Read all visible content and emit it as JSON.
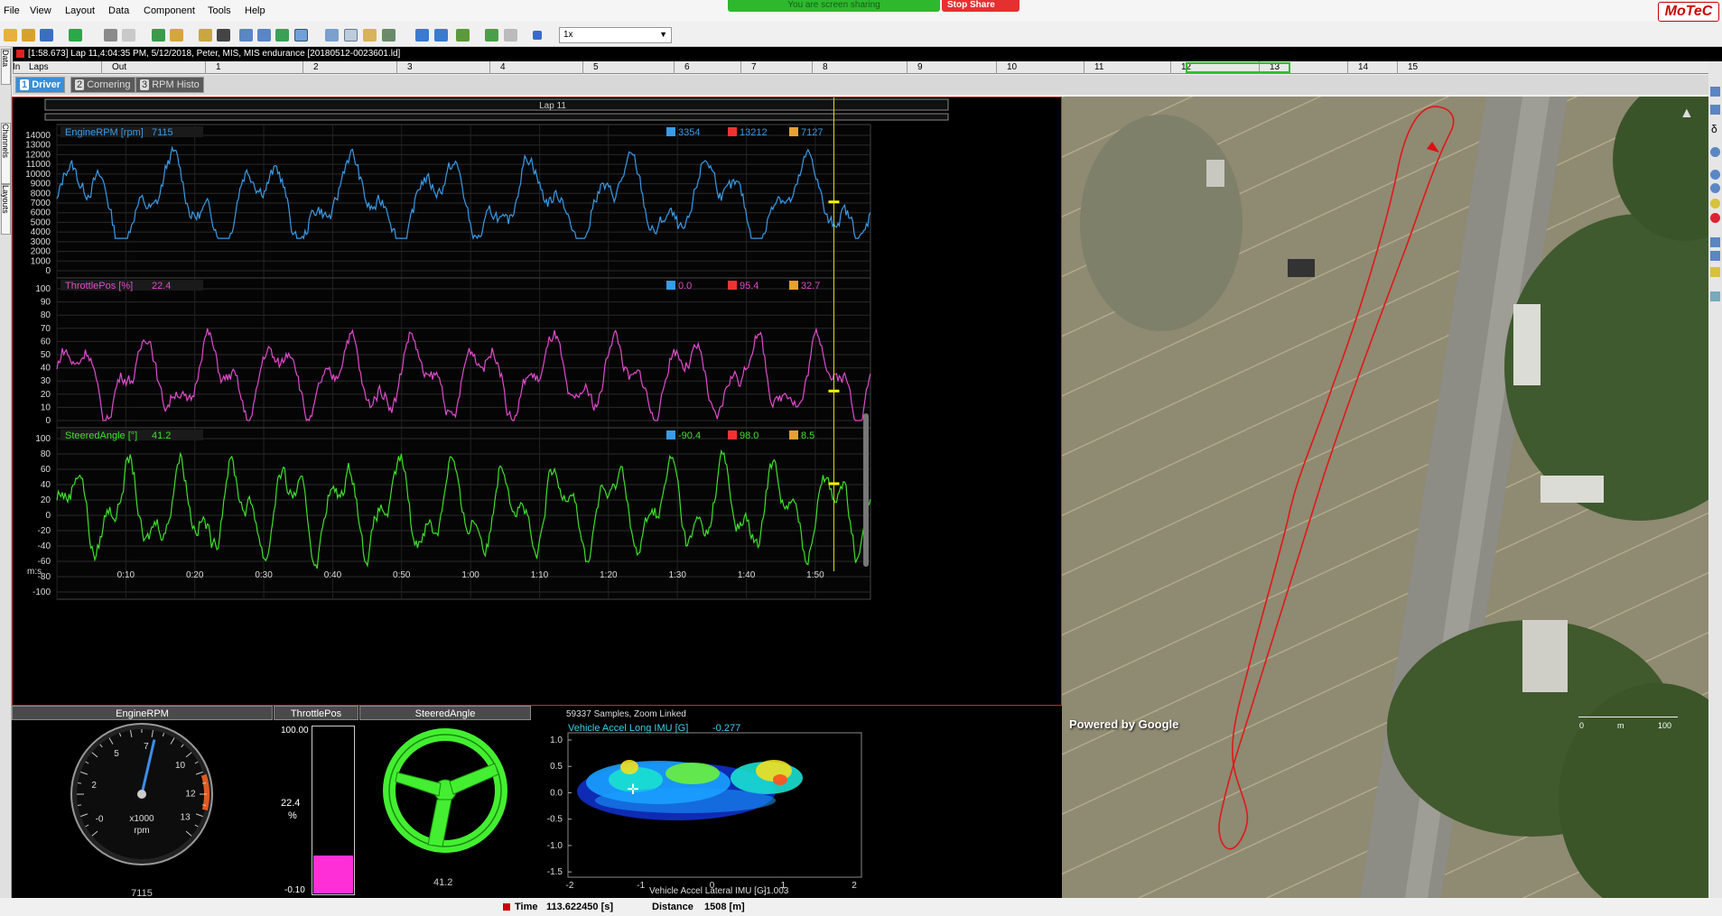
{
  "menu": [
    "File",
    "View",
    "Layout",
    "Data",
    "Component",
    "Tools",
    "Help"
  ],
  "share": {
    "banner": "You are screen sharing",
    "stop": "Stop Share"
  },
  "logo": "MoTeC",
  "toolbar": {
    "zoom": "1x"
  },
  "window_title": "[1:58.673] Lap 11,4:04:35 PM, 5/12/2018, Peter, MIS, MIS endurance [20180512-0023601.ld]",
  "laps": {
    "label": "Laps",
    "items": [
      "Out",
      "1",
      "2",
      "3",
      "4",
      "5",
      "6",
      "7",
      "8",
      "9",
      "10",
      "11",
      "12",
      "13",
      "14",
      "15",
      "In"
    ],
    "selected": "11"
  },
  "tabs": [
    {
      "num": "1",
      "label": "Driver",
      "active": true
    },
    {
      "num": "2",
      "label": "Cornering",
      "active": false
    },
    {
      "num": "3",
      "label": "RPM Histo",
      "active": false
    }
  ],
  "left_sidebar": [
    "Data",
    "Channels",
    "Layouts"
  ],
  "graph": {
    "lap_label": "Lap 11",
    "time_unit": "m:s",
    "time_ticks": [
      "0:10",
      "0:20",
      "0:30",
      "0:40",
      "0:50",
      "1:00",
      "1:10",
      "1:20",
      "1:30",
      "1:40",
      "1:50"
    ],
    "cursor_fraction": 0.955,
    "channels": [
      {
        "name": "EngineRPM [rpm]",
        "value": "7115",
        "min": "3354",
        "max": "13212",
        "avg": "7127",
        "color": "#3a9be6",
        "yticks": [
          "14000",
          "13000",
          "12000",
          "11000",
          "10000",
          "9000",
          "8000",
          "7000",
          "6000",
          "5000",
          "4000",
          "3000",
          "2000",
          "1000",
          "0"
        ],
        "ymin": 0,
        "ymax": 14000,
        "cursor_y": 7115
      },
      {
        "name": "ThrottlePos [%]",
        "value": "22.4",
        "min": "0.0",
        "max": "95.4",
        "avg": "32.7",
        "color": "#e04ccc",
        "yticks": [
          "100",
          "90",
          "80",
          "70",
          "60",
          "50",
          "40",
          "30",
          "20",
          "10",
          "0"
        ],
        "ymin": 0,
        "ymax": 100,
        "cursor_y": 22.4
      },
      {
        "name": "SteeredAngle [°]",
        "value": "41.2",
        "min": "-90.4",
        "max": "98.0",
        "avg": "8.5",
        "color": "#3ee02a",
        "yticks": [
          "100",
          "80",
          "60",
          "40",
          "20",
          "0",
          "-20",
          "-40",
          "-60",
          "-80",
          "-100"
        ],
        "ymin": -100,
        "ymax": 100,
        "cursor_y": 41.2
      }
    ]
  },
  "gauges": {
    "rpm": {
      "title": "EngineRPM",
      "ticks": [
        "-0",
        "2",
        "5",
        "7",
        "10",
        "12",
        "13"
      ],
      "unit1": "x1000",
      "unit2": "rpm",
      "value": "7115",
      "level": 0.55
    },
    "throttle": {
      "title": "ThrottlePos",
      "top": "100.00",
      "bottom": "-0.10",
      "value": "22.4",
      "unit": "%",
      "level": 0.224
    },
    "steering": {
      "title": "SteeredAngle",
      "value": "41.2"
    }
  },
  "histogram": {
    "samples": "59337 Samples, Zoom Linked",
    "ychannel": "Vehicle Accel Long IMU [G]",
    "yvalue": "-0.277",
    "yticks": [
      "1.0",
      "0.5",
      "0.0",
      "-0.5",
      "-1.0",
      "-1.5"
    ],
    "xticks": [
      "-2",
      "-1",
      "0",
      "1",
      "2"
    ],
    "xlabel": "Vehicle Accel Lateral IMU [G]",
    "xvalue": "-1.003"
  },
  "map": {
    "attribution": "Powered by Google",
    "scale_start": "0",
    "scale_unit": "m",
    "scale_end": "100"
  },
  "status": {
    "time_label": "Time",
    "time_value": "113.622450 [s]",
    "distance_label": "Distance",
    "distance_value": "1508 [m]"
  }
}
